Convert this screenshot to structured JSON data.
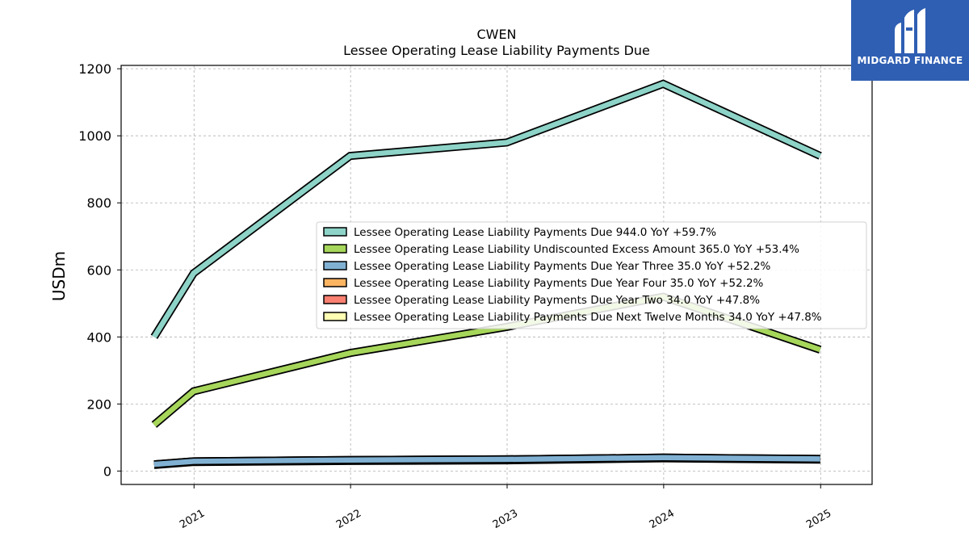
{
  "brand": {
    "name": "MIDGARD FINANCE",
    "logo_icon": "midgard-pillar-logo-icon",
    "background_color": "#2f5fb3"
  },
  "chart_data": {
    "type": "line",
    "title": "CWEN",
    "subtitle": "Lessee Operating Lease Liability Payments Due",
    "xlabel": "",
    "ylabel": "USDm",
    "x": [
      "2020-09-30",
      "2020-12-31",
      "2021-12-31",
      "2022-12-31",
      "2023-12-31",
      "2024-12-31"
    ],
    "x_tick_labels": [
      "2021",
      "2022",
      "2023",
      "2024",
      "2025"
    ],
    "y_ticks": [
      0,
      200,
      400,
      600,
      800,
      1000,
      1200
    ],
    "ylim": [
      -40,
      1210
    ],
    "grid": true,
    "legend_position": "center-right",
    "series": [
      {
        "name": "Lessee Operating Lease Liability Payments Due",
        "legend_value": "944.0 YoY +59.7%",
        "color": "#8dd3c7",
        "values": [
          400,
          590,
          940,
          980,
          1155,
          940
        ]
      },
      {
        "name": "Lessee Operating Lease Liability Undiscounted Excess Amount",
        "legend_value": "365.0 YoY +53.4%",
        "color": "#a6d65a",
        "values": [
          138,
          238,
          352,
          430,
          520,
          362
        ]
      },
      {
        "name": "Lessee Operating Lease Liability Payments Due Year Three",
        "legend_value": "35.0 YoY +52.2%",
        "color": "#80b1d3",
        "values": [
          20,
          29,
          33,
          35,
          40,
          36
        ]
      },
      {
        "name": "Lessee Operating Lease Liability Payments Due Year Four",
        "legend_value": "35.0 YoY +52.2%",
        "color": "#fdb462",
        "values": [
          20,
          29,
          33,
          35,
          40,
          36
        ]
      },
      {
        "name": "Lessee Operating Lease Liability Payments Due Year Two",
        "legend_value": "34.0 YoY +47.8%",
        "color": "#fb8072",
        "values": [
          19,
          28,
          32,
          33,
          39,
          35
        ]
      },
      {
        "name": "Lessee Operating Lease Liability Payments Due Next Twelve Months",
        "legend_value": "34.0 YoY +47.8%",
        "color": "#ffffb3",
        "values": [
          18,
          27,
          30,
          32,
          38,
          34
        ]
      }
    ]
  }
}
